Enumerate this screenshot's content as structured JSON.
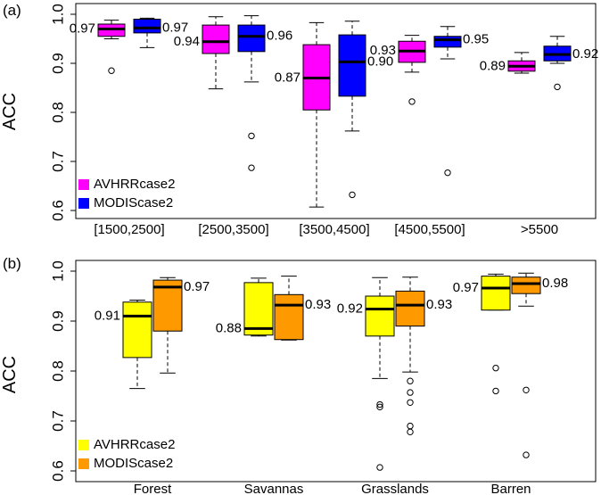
{
  "chart_data": [
    {
      "panel_label": "(a)",
      "type": "boxplot",
      "ylabel": "ACC",
      "ylim": [
        0.6,
        1.0
      ],
      "yticks": [
        0.6,
        0.7,
        0.8,
        0.9,
        1.0
      ],
      "ytick_labels": [
        "0.6",
        "0.7",
        "0.8",
        "0.9",
        "1.0"
      ],
      "categories": [
        "[1500,2500]",
        "[2500,3500]",
        "[3500,4500]",
        "[4500,5500]",
        ">5500"
      ],
      "legend": {
        "position": "bottom-left",
        "entries": [
          "AVHRRcase2",
          "MODIScase2"
        ]
      },
      "series": [
        {
          "name": "AVHRRcase2",
          "color": "#ff00ff",
          "boxes": [
            {
              "min": 0.95,
              "q1": 0.955,
              "median": 0.97,
              "q3": 0.98,
              "max": 0.988,
              "outliers": [
                0.885
              ],
              "label": "0.97"
            },
            {
              "min": 0.848,
              "q1": 0.92,
              "median": 0.944,
              "q3": 0.978,
              "max": 0.995,
              "outliers": [],
              "label": "0.94"
            },
            {
              "min": 0.607,
              "q1": 0.805,
              "median": 0.87,
              "q3": 0.938,
              "max": 0.983,
              "outliers": [],
              "label": "0.87"
            },
            {
              "min": 0.882,
              "q1": 0.902,
              "median": 0.925,
              "q3": 0.945,
              "max": 0.957,
              "outliers": [
                0.822
              ],
              "label": "0.93"
            },
            {
              "min": 0.88,
              "q1": 0.884,
              "median": 0.894,
              "q3": 0.905,
              "max": 0.922,
              "outliers": [],
              "label": "0.89"
            }
          ]
        },
        {
          "name": "MODIScase2",
          "color": "#0000ff",
          "boxes": [
            {
              "min": 0.932,
              "q1": 0.962,
              "median": 0.972,
              "q3": 0.99,
              "max": 0.992,
              "outliers": [],
              "label": "0.97"
            },
            {
              "min": 0.862,
              "q1": 0.924,
              "median": 0.955,
              "q3": 0.978,
              "max": 0.997,
              "outliers": [
                0.752,
                0.687
              ],
              "label": "0.96"
            },
            {
              "min": 0.762,
              "q1": 0.833,
              "median": 0.903,
              "q3": 0.958,
              "max": 0.986,
              "outliers": [
                0.632
              ],
              "label": "0.90"
            },
            {
              "min": 0.909,
              "q1": 0.933,
              "median": 0.948,
              "q3": 0.955,
              "max": 0.975,
              "outliers": [
                0.677
              ],
              "label": "0.95"
            },
            {
              "min": 0.9,
              "q1": 0.905,
              "median": 0.918,
              "q3": 0.935,
              "max": 0.955,
              "outliers": [
                0.852
              ],
              "label": "0.92"
            }
          ]
        }
      ]
    },
    {
      "panel_label": "(b)",
      "type": "boxplot",
      "ylabel": "ACC",
      "ylim": [
        0.6,
        1.0
      ],
      "yticks": [
        0.6,
        0.7,
        0.8,
        0.9,
        1.0
      ],
      "ytick_labels": [
        "0.6",
        "0.7",
        "0.8",
        "0.9",
        "1.0"
      ],
      "categories": [
        "Forest",
        "Savannas",
        "Grasslands",
        "Barren"
      ],
      "legend": {
        "position": "bottom-left",
        "entries": [
          "AVHRRcase2",
          "MODIScase2"
        ]
      },
      "series": [
        {
          "name": "AVHRRcase2",
          "color": "#ffff00",
          "boxes": [
            {
              "min": 0.765,
              "q1": 0.827,
              "median": 0.91,
              "q3": 0.938,
              "max": 0.942,
              "outliers": [],
              "label": "0.91"
            },
            {
              "min": 0.87,
              "q1": 0.872,
              "median": 0.885,
              "q3": 0.977,
              "max": 0.986,
              "outliers": [],
              "label": "0.88"
            },
            {
              "min": 0.785,
              "q1": 0.87,
              "median": 0.924,
              "q3": 0.95,
              "max": 0.987,
              "outliers": [
                0.733,
                0.728,
                0.607
              ],
              "label": "0.92"
            },
            {
              "min": 0.922,
              "q1": 0.922,
              "median": 0.966,
              "q3": 0.99,
              "max": 0.994,
              "outliers": [
                0.806,
                0.76
              ],
              "label": "0.97"
            }
          ]
        },
        {
          "name": "MODIScase2",
          "color": "#ff9900",
          "boxes": [
            {
              "min": 0.796,
              "q1": 0.88,
              "median": 0.968,
              "q3": 0.982,
              "max": 0.987,
              "outliers": [],
              "label": "0.97"
            },
            {
              "min": 0.862,
              "q1": 0.863,
              "median": 0.932,
              "q3": 0.953,
              "max": 0.99,
              "outliers": [],
              "label": "0.93"
            },
            {
              "min": 0.798,
              "q1": 0.89,
              "median": 0.932,
              "q3": 0.96,
              "max": 0.988,
              "outliers": [
                0.78,
                0.757,
                0.737,
                0.69,
                0.678
              ],
              "label": "0.93"
            },
            {
              "min": 0.93,
              "q1": 0.955,
              "median": 0.975,
              "q3": 0.988,
              "max": 0.996,
              "outliers": [
                0.762,
                0.632
              ],
              "label": "0.98"
            }
          ]
        }
      ]
    }
  ]
}
